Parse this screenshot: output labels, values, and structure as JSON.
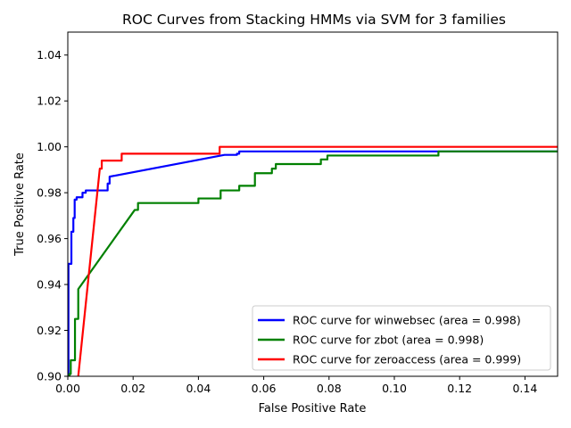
{
  "chart_data": {
    "type": "line",
    "title": "ROC Curves from Stacking HMMs via SVM for 3 families",
    "xlabel": "False Positive Rate",
    "ylabel": "True Positive Rate",
    "xlim": [
      0.0,
      0.15
    ],
    "ylim": [
      0.9,
      1.05
    ],
    "x_ticks": [
      "0.00",
      "0.02",
      "0.04",
      "0.06",
      "0.08",
      "0.10",
      "0.12",
      "0.14"
    ],
    "x_tick_values": [
      0.0,
      0.02,
      0.04,
      0.06,
      0.08,
      0.1,
      0.12,
      0.14
    ],
    "y_ticks": [
      "0.90",
      "0.92",
      "0.94",
      "0.96",
      "0.98",
      "1.00",
      "1.02",
      "1.04"
    ],
    "y_tick_values": [
      0.9,
      0.92,
      0.94,
      0.96,
      0.98,
      1.0,
      1.02,
      1.04
    ],
    "grid": false,
    "legend_position": "lower-right",
    "series": [
      {
        "name": "ROC curve for winwebsec (area = 0.998)",
        "color": "#0000ff",
        "points": [
          [
            0.0,
            0.9
          ],
          [
            0.0002,
            0.9
          ],
          [
            0.0002,
            0.949
          ],
          [
            0.0011,
            0.949
          ],
          [
            0.0011,
            0.963
          ],
          [
            0.0017,
            0.963
          ],
          [
            0.0017,
            0.969
          ],
          [
            0.0021,
            0.969
          ],
          [
            0.0021,
            0.977
          ],
          [
            0.0027,
            0.977
          ],
          [
            0.0027,
            0.978
          ],
          [
            0.0045,
            0.978
          ],
          [
            0.0045,
            0.98
          ],
          [
            0.0055,
            0.98
          ],
          [
            0.0055,
            0.981
          ],
          [
            0.0122,
            0.981
          ],
          [
            0.0122,
            0.984
          ],
          [
            0.0128,
            0.984
          ],
          [
            0.0128,
            0.987
          ],
          [
            0.048,
            0.9965
          ],
          [
            0.0518,
            0.9965
          ],
          [
            0.0518,
            0.997
          ],
          [
            0.0525,
            0.997
          ],
          [
            0.0525,
            0.998
          ],
          [
            0.15,
            0.998
          ]
        ]
      },
      {
        "name": "ROC curve for zbot (area = 0.998)",
        "color": "#008000",
        "points": [
          [
            0.0,
            0.9
          ],
          [
            0.0005,
            0.9
          ],
          [
            0.0005,
            0.901
          ],
          [
            0.0009,
            0.901
          ],
          [
            0.0009,
            0.907
          ],
          [
            0.0022,
            0.907
          ],
          [
            0.0022,
            0.925
          ],
          [
            0.0032,
            0.925
          ],
          [
            0.0032,
            0.938
          ],
          [
            0.0205,
            0.9725
          ],
          [
            0.0215,
            0.9725
          ],
          [
            0.0215,
            0.9755
          ],
          [
            0.04,
            0.9755
          ],
          [
            0.04,
            0.9775
          ],
          [
            0.0468,
            0.9775
          ],
          [
            0.0468,
            0.981
          ],
          [
            0.0525,
            0.981
          ],
          [
            0.0525,
            0.983
          ],
          [
            0.0573,
            0.983
          ],
          [
            0.0573,
            0.9885
          ],
          [
            0.0625,
            0.9885
          ],
          [
            0.0625,
            0.9905
          ],
          [
            0.0637,
            0.9905
          ],
          [
            0.0637,
            0.9925
          ],
          [
            0.0775,
            0.9925
          ],
          [
            0.0775,
            0.9945
          ],
          [
            0.0795,
            0.9945
          ],
          [
            0.0795,
            0.9962
          ],
          [
            0.1135,
            0.9962
          ],
          [
            0.1135,
            0.998
          ],
          [
            0.15,
            0.998
          ]
        ]
      },
      {
        "name": "ROC curve for zeroaccess (area = 0.999)",
        "color": "#ff0000",
        "points": [
          [
            0.0032,
            0.9
          ],
          [
            0.0098,
            0.9905
          ],
          [
            0.0104,
            0.9905
          ],
          [
            0.0104,
            0.994
          ],
          [
            0.0165,
            0.994
          ],
          [
            0.0165,
            0.997
          ],
          [
            0.0465,
            0.997
          ],
          [
            0.0465,
            1.0
          ],
          [
            0.15,
            1.0
          ]
        ]
      }
    ]
  }
}
